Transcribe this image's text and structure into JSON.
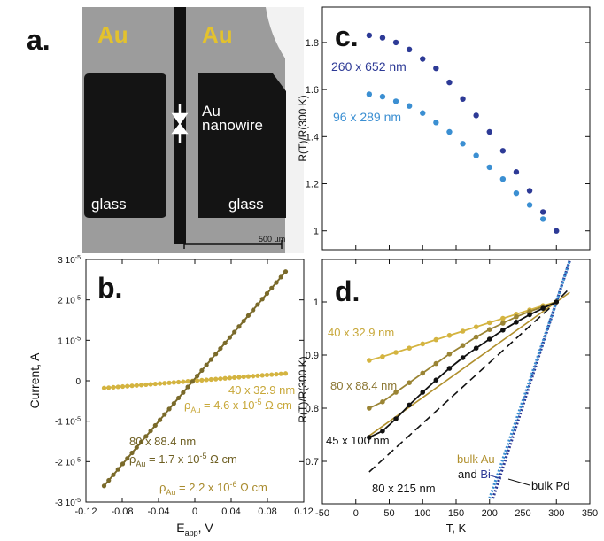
{
  "panel_a": {
    "letter": "a.",
    "label_au_left": "Au",
    "label_au_right": "Au",
    "label_nanowire_1": "Au",
    "label_nanowire_2": "nanowire",
    "label_glass_left": "glass",
    "label_glass_right": "glass",
    "scale_bar": "500 µm"
  },
  "chart_data": [
    {
      "id": "b",
      "type": "line",
      "panel_letter": "b.",
      "xlabel": "E",
      "xlabel_sub": "app",
      "xlabel_unit": ", V",
      "ylabel": "Current, A",
      "xlim": [
        -0.12,
        0.12
      ],
      "ylim": [
        -3e-05,
        3e-05
      ],
      "x_ticks": [
        "-0.12",
        "-0.08",
        "-0.04",
        "0",
        "0.04",
        "0.08",
        "0.12"
      ],
      "x_tick_values": [
        -0.12,
        -0.08,
        -0.04,
        0,
        0.04,
        0.08,
        0.12
      ],
      "y_ticks": [
        {
          "v": 3e-05,
          "m": "3 10",
          "e": "-5"
        },
        {
          "v": 2e-05,
          "m": "2 10",
          "e": "-5"
        },
        {
          "v": 1e-05,
          "m": "1 10",
          "e": "-5"
        },
        {
          "v": 0,
          "m": "0",
          "e": ""
        },
        {
          "v": -1e-05,
          "m": "-1 10",
          "e": "-5"
        },
        {
          "v": -2e-05,
          "m": "-2 10",
          "e": "-5"
        },
        {
          "v": -3e-05,
          "m": "-3 10",
          "e": "-5"
        }
      ],
      "series": [
        {
          "label": "40 x 32.9 nm",
          "color": "#d4b440",
          "x_range": [
            -0.1,
            0.1
          ],
          "y_range": [
            -1.8e-06,
            1.8e-06
          ],
          "points": 40
        },
        {
          "label": "80 x 88.4 nm",
          "color": "#7a6a2a",
          "x_range": [
            -0.1,
            0.1
          ],
          "y_range": [
            -2.6e-05,
            2.7e-05
          ],
          "points": 40
        }
      ],
      "annotations": {
        "rho1_text": "ρ",
        "rho1_sub": "Au",
        "rho1_eq": " = 4.6 x 10",
        "rho1_exp": "-5",
        "rho1_unit": " Ω cm",
        "s2_label": "80 x 88.4 nm",
        "rho2_text": "ρ",
        "rho2_sub": "Au",
        "rho2_eq": " = 1.7 x 10",
        "rho2_exp": "-5",
        "rho2_unit": " Ω cm",
        "rho3_text": "ρ",
        "rho3_sub": "Au",
        "rho3_eq": " = 2.2 x 10",
        "rho3_exp": "-6",
        "rho3_unit": " Ω cm"
      }
    },
    {
      "id": "c",
      "type": "scatter",
      "panel_letter": "c.",
      "ylabel": "R(T)/R(300 K)",
      "xlim": [
        -50,
        350
      ],
      "ylim": [
        0.92,
        1.95
      ],
      "y_ticks": [
        "1.8",
        "1.6",
        "1.4",
        "1.2",
        "1"
      ],
      "y_tick_values": [
        1.8,
        1.6,
        1.4,
        1.2,
        1.0
      ],
      "series": [
        {
          "label": "260 x 652 nm",
          "color": "#2d3a96",
          "x": [
            20,
            40,
            60,
            80,
            100,
            120,
            140,
            160,
            180,
            200,
            220,
            240,
            260,
            280,
            300
          ],
          "y": [
            1.83,
            1.82,
            1.8,
            1.77,
            1.73,
            1.69,
            1.63,
            1.56,
            1.49,
            1.42,
            1.34,
            1.25,
            1.17,
            1.08,
            1.0
          ]
        },
        {
          "label": "96 x 289 nm",
          "color": "#3b8fd2",
          "x": [
            20,
            40,
            60,
            80,
            100,
            120,
            140,
            160,
            180,
            200,
            220,
            240,
            260,
            280
          ],
          "y": [
            1.58,
            1.57,
            1.55,
            1.53,
            1.5,
            1.46,
            1.42,
            1.37,
            1.32,
            1.27,
            1.22,
            1.16,
            1.11,
            1.05
          ]
        }
      ]
    },
    {
      "id": "d",
      "type": "line",
      "panel_letter": "d.",
      "xlabel": "T, K",
      "ylabel": "R(T)/R(300 K)",
      "xlim": [
        -50,
        350
      ],
      "ylim": [
        0.62,
        1.08
      ],
      "x_ticks": [
        "-50",
        "0",
        "50",
        "100",
        "150",
        "200",
        "250",
        "300",
        "350"
      ],
      "x_tick_values": [
        -50,
        0,
        50,
        100,
        150,
        200,
        250,
        300,
        350
      ],
      "y_ticks": [
        "1",
        "0.9",
        "0.8",
        "0.7"
      ],
      "y_tick_values": [
        1.0,
        0.9,
        0.8,
        0.7
      ],
      "series": [
        {
          "label": "40 x 32.9 nm",
          "color": "#d4b440",
          "x": [
            20,
            40,
            60,
            80,
            100,
            120,
            140,
            160,
            180,
            200,
            220,
            240,
            260,
            280,
            300
          ],
          "y": [
            0.89,
            0.897,
            0.905,
            0.913,
            0.921,
            0.929,
            0.937,
            0.945,
            0.953,
            0.961,
            0.969,
            0.977,
            0.985,
            0.993,
            1.0
          ]
        },
        {
          "label": "80 x 88.4 nm",
          "color": "#9a8434",
          "x": [
            20,
            40,
            60,
            80,
            100,
            120,
            140,
            160,
            180,
            200,
            220,
            240,
            260,
            280,
            300
          ],
          "y": [
            0.8,
            0.812,
            0.83,
            0.848,
            0.866,
            0.884,
            0.902,
            0.918,
            0.934,
            0.948,
            0.96,
            0.972,
            0.982,
            0.991,
            1.0
          ]
        },
        {
          "label": "45 x 100 nm",
          "color": "#111111",
          "x": [
            20,
            40,
            60,
            80,
            100,
            120,
            140,
            160,
            180,
            200,
            220,
            240,
            260,
            280,
            300
          ],
          "y": [
            0.745,
            0.757,
            0.78,
            0.806,
            0.83,
            0.853,
            0.875,
            0.895,
            0.913,
            0.93,
            0.947,
            0.962,
            0.976,
            0.988,
            1.0
          ]
        }
      ],
      "references": [
        {
          "label": "bulk Au",
          "color": "#b08f2c",
          "x": [
            20,
            300,
            320
          ],
          "y": [
            0.748,
            1.0,
            1.018
          ]
        },
        {
          "label": "80 x 215 nm",
          "color": "#111111",
          "x": [
            20,
            300,
            320
          ],
          "y": [
            0.68,
            1.0,
            1.026
          ]
        },
        {
          "label": "Bi",
          "prefix": "and ",
          "color": "#2d3a96",
          "x": [
            205,
            300,
            320
          ],
          "y": [
            0.63,
            1.0,
            1.078
          ]
        },
        {
          "label": "bulk Pd",
          "color": "#3b8fd2",
          "x": [
            200,
            300,
            320
          ],
          "y": [
            0.63,
            1.0,
            1.078
          ]
        }
      ]
    }
  ]
}
